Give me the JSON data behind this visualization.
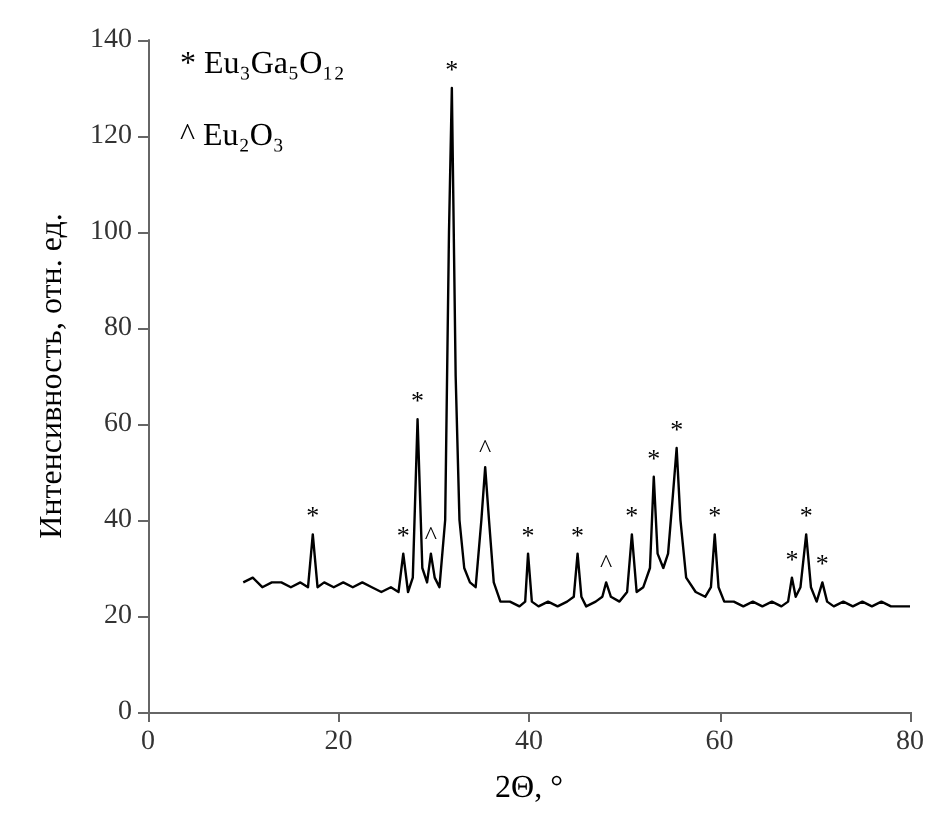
{
  "chart_data": {
    "type": "line",
    "xlabel": "2Θ, °",
    "ylabel": "Интенсивность, отн. ед.",
    "xlim": [
      0,
      80
    ],
    "xticks": [
      0,
      20,
      40,
      60,
      80
    ],
    "ylim": [
      0,
      140
    ],
    "yticks": [
      0,
      20,
      40,
      60,
      80,
      100,
      120,
      140
    ],
    "grid": false,
    "marker": "none",
    "line_style": "solid",
    "series": [
      {
        "color": "#000000",
        "x": [
          10,
          11,
          12,
          13,
          14,
          15,
          16,
          16.8,
          17.3,
          17.8,
          18.5,
          19.5,
          20.5,
          21.5,
          22.5,
          23.5,
          24.5,
          25.5,
          26.3,
          26.8,
          27.3,
          27.8,
          28.3,
          28.8,
          29.3,
          29.7,
          30.1,
          30.6,
          31.2,
          31.6,
          31.9,
          32.3,
          32.7,
          33.2,
          33.8,
          34.4,
          35,
          35.4,
          35.8,
          36.3,
          37,
          38,
          39,
          39.6,
          39.9,
          40.3,
          41,
          42,
          43,
          44,
          44.7,
          45.1,
          45.5,
          46,
          47,
          47.7,
          48.1,
          48.6,
          49.5,
          50.3,
          50.8,
          51.3,
          52,
          52.7,
          53.1,
          53.5,
          54.1,
          54.6,
          55.1,
          55.5,
          55.9,
          56.5,
          57.5,
          58.5,
          59.1,
          59.5,
          59.9,
          60.5,
          61.5,
          62.5,
          63.5,
          64.5,
          65.5,
          66.5,
          67.2,
          67.6,
          68,
          68.5,
          69.1,
          69.6,
          70.2,
          70.8,
          71.3,
          72,
          73,
          74,
          75,
          76,
          77,
          78,
          79,
          80
        ],
        "values": [
          27,
          28,
          26,
          27,
          27,
          26,
          27,
          26,
          37,
          26,
          27,
          26,
          27,
          26,
          27,
          26,
          25,
          26,
          25,
          33,
          25,
          28,
          61,
          30,
          27,
          33,
          28,
          26,
          40,
          100,
          130,
          70,
          40,
          30,
          27,
          26,
          40,
          51,
          40,
          27,
          23,
          23,
          22,
          23,
          33,
          23,
          22,
          23,
          22,
          23,
          24,
          33,
          24,
          22,
          23,
          24,
          27,
          24,
          23,
          25,
          37,
          25,
          26,
          30,
          49,
          33,
          30,
          33,
          45,
          55,
          40,
          28,
          25,
          24,
          26,
          37,
          26,
          23,
          23,
          22,
          23,
          22,
          23,
          22,
          23,
          28,
          24,
          26,
          37,
          26,
          23,
          27,
          23,
          22,
          23,
          22,
          23,
          22,
          23,
          22,
          22,
          22
        ]
      }
    ],
    "annotations": [
      "* Eu₃Ga₅O₁₂",
      "^ Eu₂O₃",
      {
        "text": "*",
        "x": 17.3,
        "y": 37
      },
      {
        "text": "*",
        "x": 26.8,
        "y": 33
      },
      {
        "text": "*",
        "x": 28.3,
        "y": 61
      },
      {
        "text": "*",
        "x": 31.9,
        "y": 130
      },
      {
        "text": "*",
        "x": 39.9,
        "y": 33
      },
      {
        "text": "*",
        "x": 45.1,
        "y": 33
      },
      {
        "text": "*",
        "x": 50.8,
        "y": 37
      },
      {
        "text": "*",
        "x": 53.1,
        "y": 49
      },
      {
        "text": "*",
        "x": 55.5,
        "y": 55
      },
      {
        "text": "*",
        "x": 59.5,
        "y": 37
      },
      {
        "text": "*",
        "x": 67.6,
        "y": 28
      },
      {
        "text": "*",
        "x": 69.1,
        "y": 37
      },
      {
        "text": "*",
        "x": 70.8,
        "y": 27
      },
      {
        "text": "^",
        "x": 29.7,
        "y": 33
      },
      {
        "text": "^",
        "x": 35.4,
        "y": 51
      },
      {
        "text": "^",
        "x": 48.1,
        "y": 27
      }
    ]
  }
}
